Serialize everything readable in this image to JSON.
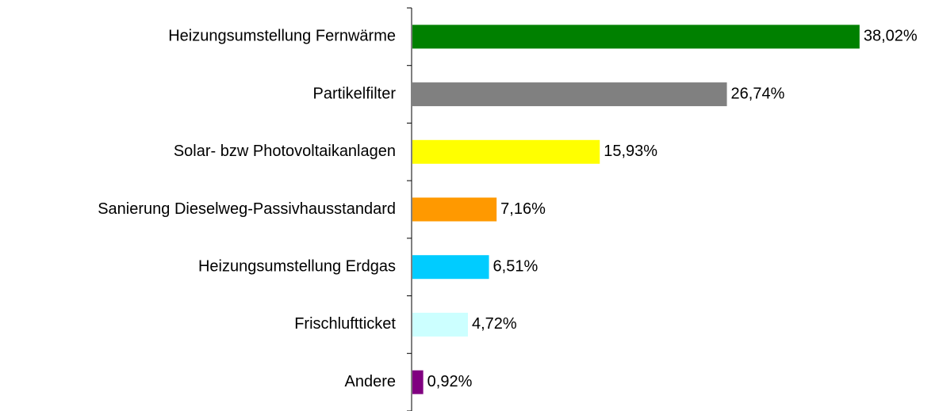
{
  "chart_data": {
    "type": "barh",
    "categories": [
      "Heizungsumstellung Fernwärme",
      "Partikelfilter",
      "Solar- bzw Photovoltaikanlagen",
      "Sanierung Dieselweg-Passivhausstandard",
      "Heizungsumstellung Erdgas",
      "Frischluftticket",
      "Andere"
    ],
    "values": [
      38.02,
      26.74,
      15.93,
      7.16,
      6.51,
      4.72,
      0.92
    ],
    "value_labels": [
      "38,02%",
      "26,74%",
      "15,93%",
      "7,16%",
      "6,51%",
      "4,72%",
      "0,92%"
    ],
    "colors": [
      "#008000",
      "#808080",
      "#ffff00",
      "#ff9900",
      "#00ccff",
      "#ccffff",
      "#800080"
    ]
  }
}
